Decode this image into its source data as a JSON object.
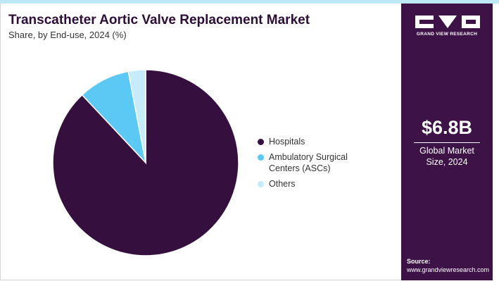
{
  "chart_data": {
    "type": "pie",
    "title": "Transcatheter Aortic Valve Replacement Market",
    "subtitle": "Share, by End-use, 2024 (%)",
    "categories": [
      "Hospitals",
      "Ambulatory Surgical Centers (ASCs)",
      "Others"
    ],
    "values": [
      88,
      9,
      3
    ],
    "colors": [
      "#35103f",
      "#5cc9f5",
      "#c6ecfa"
    ]
  },
  "brand": "GRAND VIEW RESEARCH",
  "market_size": {
    "amount": "$6.8B",
    "caption": "Global Market Size, 2024"
  },
  "source": {
    "label": "Source:",
    "url": "www.grandviewresearch.com"
  }
}
